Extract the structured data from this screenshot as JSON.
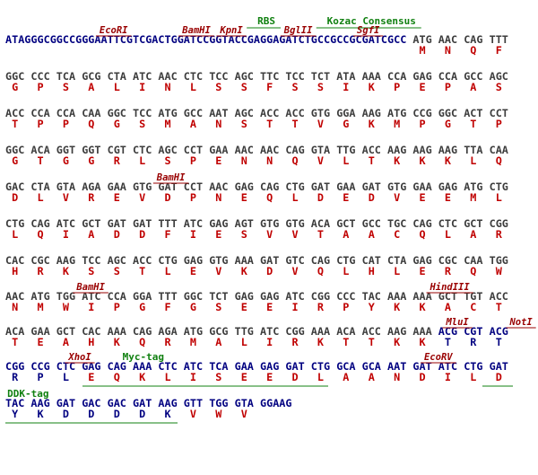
{
  "rows": [
    {
      "segments": [
        {
          "seq": "ATAGGGCGGCCGGGAATTCGTCGACTGGATCCGGTACCGAGGAGATCTGCCGCCGCGATCGCC",
          "color": "#000080"
        },
        {
          "seq": "ATG AAC CAG TTT",
          "color": "#3c3c3c",
          "protein_color": "#c00000"
        }
      ],
      "protein": [
        "M",
        "N",
        "Q",
        "F"
      ],
      "labels": [
        {
          "text": "EcoRI",
          "kind": "enzyme"
        },
        {
          "text": "BamHI",
          "kind": "enzyme"
        },
        {
          "text": "KpnI",
          "kind": "enzyme"
        },
        {
          "text": "RBS",
          "kind": "feature"
        },
        {
          "text": "BglII",
          "kind": "enzyme"
        },
        {
          "text": "Kozac Consensus",
          "kind": "feature"
        },
        {
          "text": "SgfI",
          "kind": "enzyme"
        }
      ]
    },
    {
      "segments": [
        {
          "seq": "GGC CCC TCA GCG CTA ATC AAC CTC TCC AGC TTC TCC TCT ATA AAA CCA GAG CCA GCC AGC",
          "color": "#3c3c3c",
          "protein_color": "#c00000"
        }
      ],
      "protein": [
        "G",
        "P",
        "S",
        "A",
        "L",
        "I",
        "N",
        "L",
        "S",
        "S",
        "F",
        "S",
        "S",
        "I",
        "K",
        "P",
        "E",
        "P",
        "A",
        "S"
      ],
      "labels": []
    },
    {
      "segments": [
        {
          "seq": "ACC CCA CCA CAA GGC TCC ATG GCC AAT AGC ACC ACC GTG GGA AAG ATG CCG GGC ACT CCT",
          "color": "#3c3c3c",
          "protein_color": "#c00000"
        }
      ],
      "protein": [
        "T",
        "P",
        "P",
        "Q",
        "G",
        "S",
        "M",
        "A",
        "N",
        "S",
        "T",
        "T",
        "V",
        "G",
        "K",
        "M",
        "P",
        "G",
        "T",
        "P"
      ],
      "labels": []
    },
    {
      "segments": [
        {
          "seq": "GGC ACA GGT GGT CGT CTC AGC CCT GAA AAC AAC CAG GTA TTG ACC AAG AAG AAG TTA CAA",
          "color": "#3c3c3c",
          "protein_color": "#c00000"
        }
      ],
      "protein": [
        "G",
        "T",
        "G",
        "G",
        "R",
        "L",
        "S",
        "P",
        "E",
        "N",
        "N",
        "Q",
        "V",
        "L",
        "T",
        "K",
        "K",
        "K",
        "L",
        "Q"
      ],
      "labels": []
    },
    {
      "segments": [
        {
          "seq": "GAC CTA GTA AGA GAA GTG GAT CCT AAC GAG CAG CTG GAT GAA GAT GTG GAA GAG ATG CTG",
          "color": "#3c3c3c",
          "protein_color": "#c00000"
        }
      ],
      "protein": [
        "D",
        "L",
        "V",
        "R",
        "E",
        "V",
        "D",
        "P",
        "N",
        "E",
        "Q",
        "L",
        "D",
        "E",
        "D",
        "V",
        "E",
        "E",
        "M",
        "L"
      ],
      "labels": [
        {
          "text": "BamHI",
          "kind": "enzyme"
        }
      ]
    },
    {
      "segments": [
        {
          "seq": "CTG CAG ATC GCT GAT GAT TTT ATC GAG AGT GTG GTG ACA GCT GCC TGC CAG CTC GCT CGG",
          "color": "#3c3c3c",
          "protein_color": "#c00000"
        }
      ],
      "protein": [
        "L",
        "Q",
        "I",
        "A",
        "D",
        "D",
        "F",
        "I",
        "E",
        "S",
        "V",
        "V",
        "T",
        "A",
        "A",
        "C",
        "Q",
        "L",
        "A",
        "R"
      ],
      "labels": []
    },
    {
      "segments": [
        {
          "seq": "CAC CGC AAG TCC AGC ACC CTG GAG GTG AAA GAT GTC CAG CTG CAT CTA GAG CGC CAA TGG",
          "color": "#3c3c3c",
          "protein_color": "#c00000"
        }
      ],
      "protein": [
        "H",
        "R",
        "K",
        "S",
        "S",
        "T",
        "L",
        "E",
        "V",
        "K",
        "D",
        "V",
        "Q",
        "L",
        "H",
        "L",
        "E",
        "R",
        "Q",
        "W"
      ],
      "labels": []
    },
    {
      "segments": [
        {
          "seq": "AAC ATG TGG ATC CCA GGA TTT GGC TCT GAG GAG ATC CGG CCC TAC AAA AAA GCT TGT ACC",
          "color": "#3c3c3c",
          "protein_color": "#c00000"
        }
      ],
      "protein": [
        "N",
        "M",
        "W",
        "I",
        "P",
        "G",
        "F",
        "G",
        "S",
        "E",
        "E",
        "I",
        "R",
        "P",
        "Y",
        "K",
        "K",
        "A",
        "C",
        "T"
      ],
      "labels": [
        {
          "text": "BamHI",
          "kind": "enzyme"
        },
        {
          "text": "HindIII",
          "kind": "enzyme"
        }
      ]
    },
    {
      "segments": [
        {
          "seq": "ACA GAA GCT CAC AAA CAG AGA ATG GCG TTG ATC CGG AAA ACA ACC AAG AAA",
          "color": "#3c3c3c",
          "protein_color": "#c00000"
        },
        {
          "seq": "ACG CGT ACG",
          "color": "#000080",
          "protein_color": "#000080"
        }
      ],
      "protein": [
        "T",
        "E",
        "A",
        "H",
        "K",
        "Q",
        "R",
        "M",
        "A",
        "L",
        "I",
        "R",
        "K",
        "T",
        "T",
        "K",
        "K",
        "T",
        "R",
        "T"
      ],
      "labels": [
        {
          "text": "MluI",
          "kind": "enzyme"
        },
        {
          "text": "NotI",
          "kind": "enzyme"
        }
      ]
    },
    {
      "segments": [
        {
          "seq": "CGG CCG CTC",
          "color": "#000080",
          "protein_color": "#000080"
        },
        {
          "seq": "GAG CAG AAA CTC ATC TCA GAA GAG GAT CTG GCA GCA AAT GAT ATC CTG GAT",
          "color": "#000080",
          "protein_color": "#c00000"
        }
      ],
      "protein": [
        "R",
        "P",
        "L",
        "E",
        "Q",
        "K",
        "L",
        "I",
        "S",
        "E",
        "E",
        "D",
        "L",
        "A",
        "A",
        "N",
        "D",
        "I",
        "L",
        "D"
      ],
      "labels": [
        {
          "text": "XhoI",
          "kind": "enzyme"
        },
        {
          "text": "Myc-tag",
          "kind": "tag"
        },
        {
          "text": "EcoRV",
          "kind": "enzyme"
        }
      ]
    },
    {
      "segments": [
        {
          "seq": "TAC AAG GAT GAC GAC GAT AAG",
          "color": "#000080",
          "protein_color": "#000080"
        },
        {
          "seq": "GTT TGG GTA GGAAG",
          "color": "#000080",
          "protein_color": "#c00000"
        }
      ],
      "protein": [
        "Y",
        "K",
        "D",
        "D",
        "D",
        "D",
        "K",
        "V",
        "W",
        "V"
      ],
      "labels": [
        {
          "text": "DDK-tag",
          "kind": "tag"
        }
      ]
    }
  ]
}
